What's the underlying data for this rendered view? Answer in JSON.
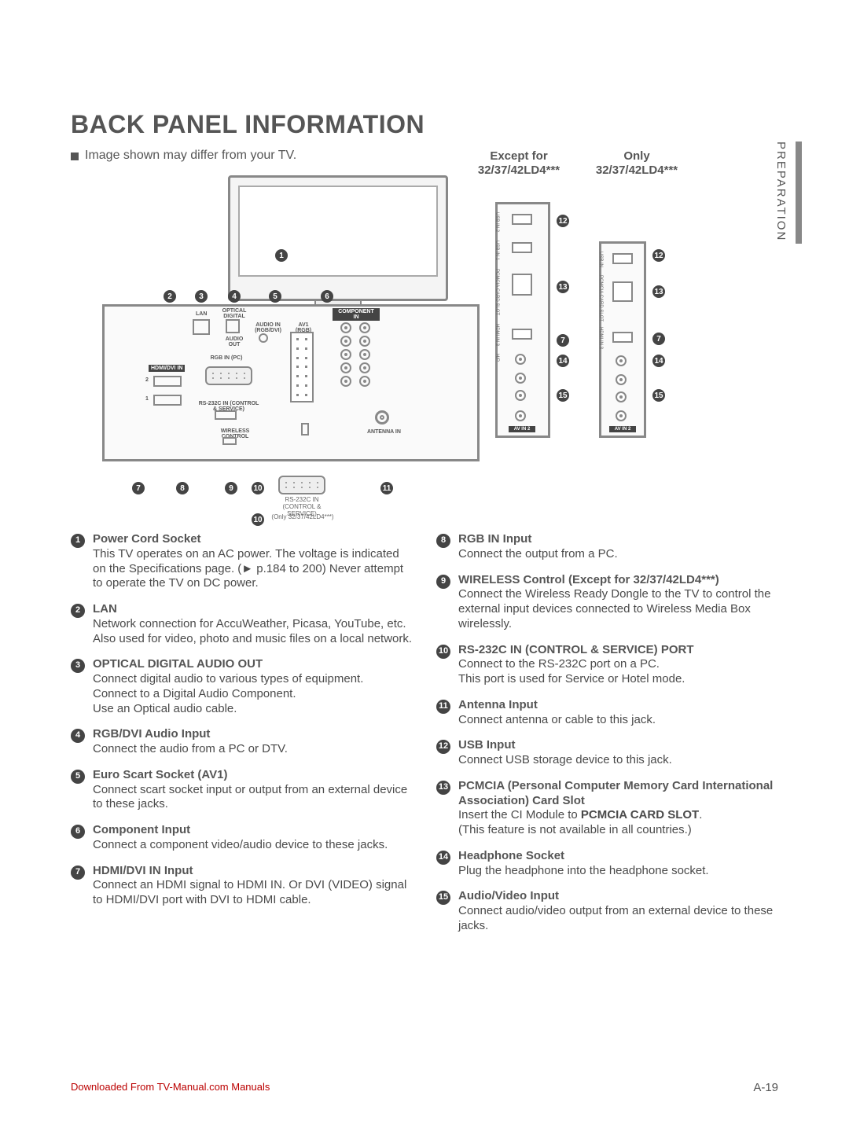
{
  "title": "BACK PANEL INFORMATION",
  "note": "Image shown may differ from your TV.",
  "header_except": "Except for",
  "header_except_model": "32/37/42LD4***",
  "header_only": "Only",
  "header_only_model": "32/37/42LD4***",
  "side_tab": "PREPARATION",
  "rs232_only_note": "(Only 32/37/42LD4***)",
  "rs232_label": "RS-232C IN (CONTROL & SERVICE)",
  "antenna_label": "ANTENNA IN",
  "panel_labels": {
    "lan": "LAN",
    "optical": "OPTICAL DIGITAL",
    "audio_out": "AUDIO OUT",
    "audio_in": "AUDIO IN (RGB/DVI)",
    "av1": "AV1 (RGB)",
    "component": "COMPONENT IN",
    "hdmi": "HDMI/DVI IN",
    "rgb_in": "RGB IN (PC)",
    "rs232": "RS-232C IN (CONTROL & SERVICE)",
    "wireless": "WIRELESS CONTROL"
  },
  "side_ports": {
    "usb2": "USB IN 2",
    "usb1": "USB IN 1",
    "usb": "USB IN",
    "pcmcia": "PCMCIA CARD SLOT",
    "hdmi3": "HDMI IN 3",
    "hp": "H/P",
    "audio": "AUDIO",
    "video": "VIDEO",
    "avin2": "AV IN 2"
  },
  "left_items": [
    {
      "n": "1",
      "hd": "Power Cord Socket",
      "body": "This TV operates on an AC power. The voltage is indicated on the Specifications page. (► p.184 to 200) Never attempt to operate the TV on DC power."
    },
    {
      "n": "2",
      "hd": "LAN",
      "body": "Network connection for AccuWeather, Picasa, YouTube, etc.\nAlso used for video, photo and music files on a local network."
    },
    {
      "n": "3",
      "hd": "OPTICAL DIGITAL AUDIO OUT",
      "body": "Connect digital audio to various types of equipment.\nConnect to a Digital Audio Component.\nUse an Optical audio cable."
    },
    {
      "n": "4",
      "hd": "RGB/DVI Audio Input",
      "body": "Connect the audio from a PC or DTV."
    },
    {
      "n": "5",
      "hd": "Euro Scart Socket (AV1)",
      "body": "Connect scart socket input or output from an external device to these jacks."
    },
    {
      "n": "6",
      "hd": "Component Input",
      "body": "Connect a component video/audio device to these jacks."
    },
    {
      "n": "7",
      "hd": "HDMI/DVI IN Input",
      "body": "Connect an HDMI signal to HDMI IN. Or DVI (VIDEO) signal to HDMI/DVI port with DVI to HDMI cable."
    }
  ],
  "right_items": [
    {
      "n": "8",
      "hd": "RGB IN Input",
      "body": "Connect the output from a PC."
    },
    {
      "n": "9",
      "hd": "WIRELESS Control (Except for 32/37/42LD4***)",
      "body": "Connect the Wireless Ready Dongle to the TV to control the external input devices connected to Wireless Media Box wirelessly."
    },
    {
      "n": "10",
      "hd": "RS-232C IN (CONTROL & SERVICE) PORT",
      "body": "Connect to the RS-232C port on a PC.\nThis port is used for Service or Hotel mode."
    },
    {
      "n": "11",
      "hd": "Antenna Input",
      "body": "Connect antenna or cable to this jack."
    },
    {
      "n": "12",
      "hd": "USB Input",
      "body": "Connect USB storage device to this jack."
    },
    {
      "n": "13",
      "hd": "PCMCIA (Personal Computer Memory Card International Association) Card Slot",
      "body": "Insert the CI Module to PCMCIA CARD SLOT.\n(This feature is not available in all countries.)",
      "bold_in_body": "PCMCIA CARD SLOT"
    },
    {
      "n": "14",
      "hd": "Headphone Socket",
      "body": "Plug the headphone into the headphone socket."
    },
    {
      "n": "15",
      "hd": "Audio/Video Input",
      "body": "Connect audio/video output from an external device to these jacks."
    }
  ],
  "footer_dl": "Downloaded From TV-Manual.com Manuals",
  "footer_page": "A-19"
}
